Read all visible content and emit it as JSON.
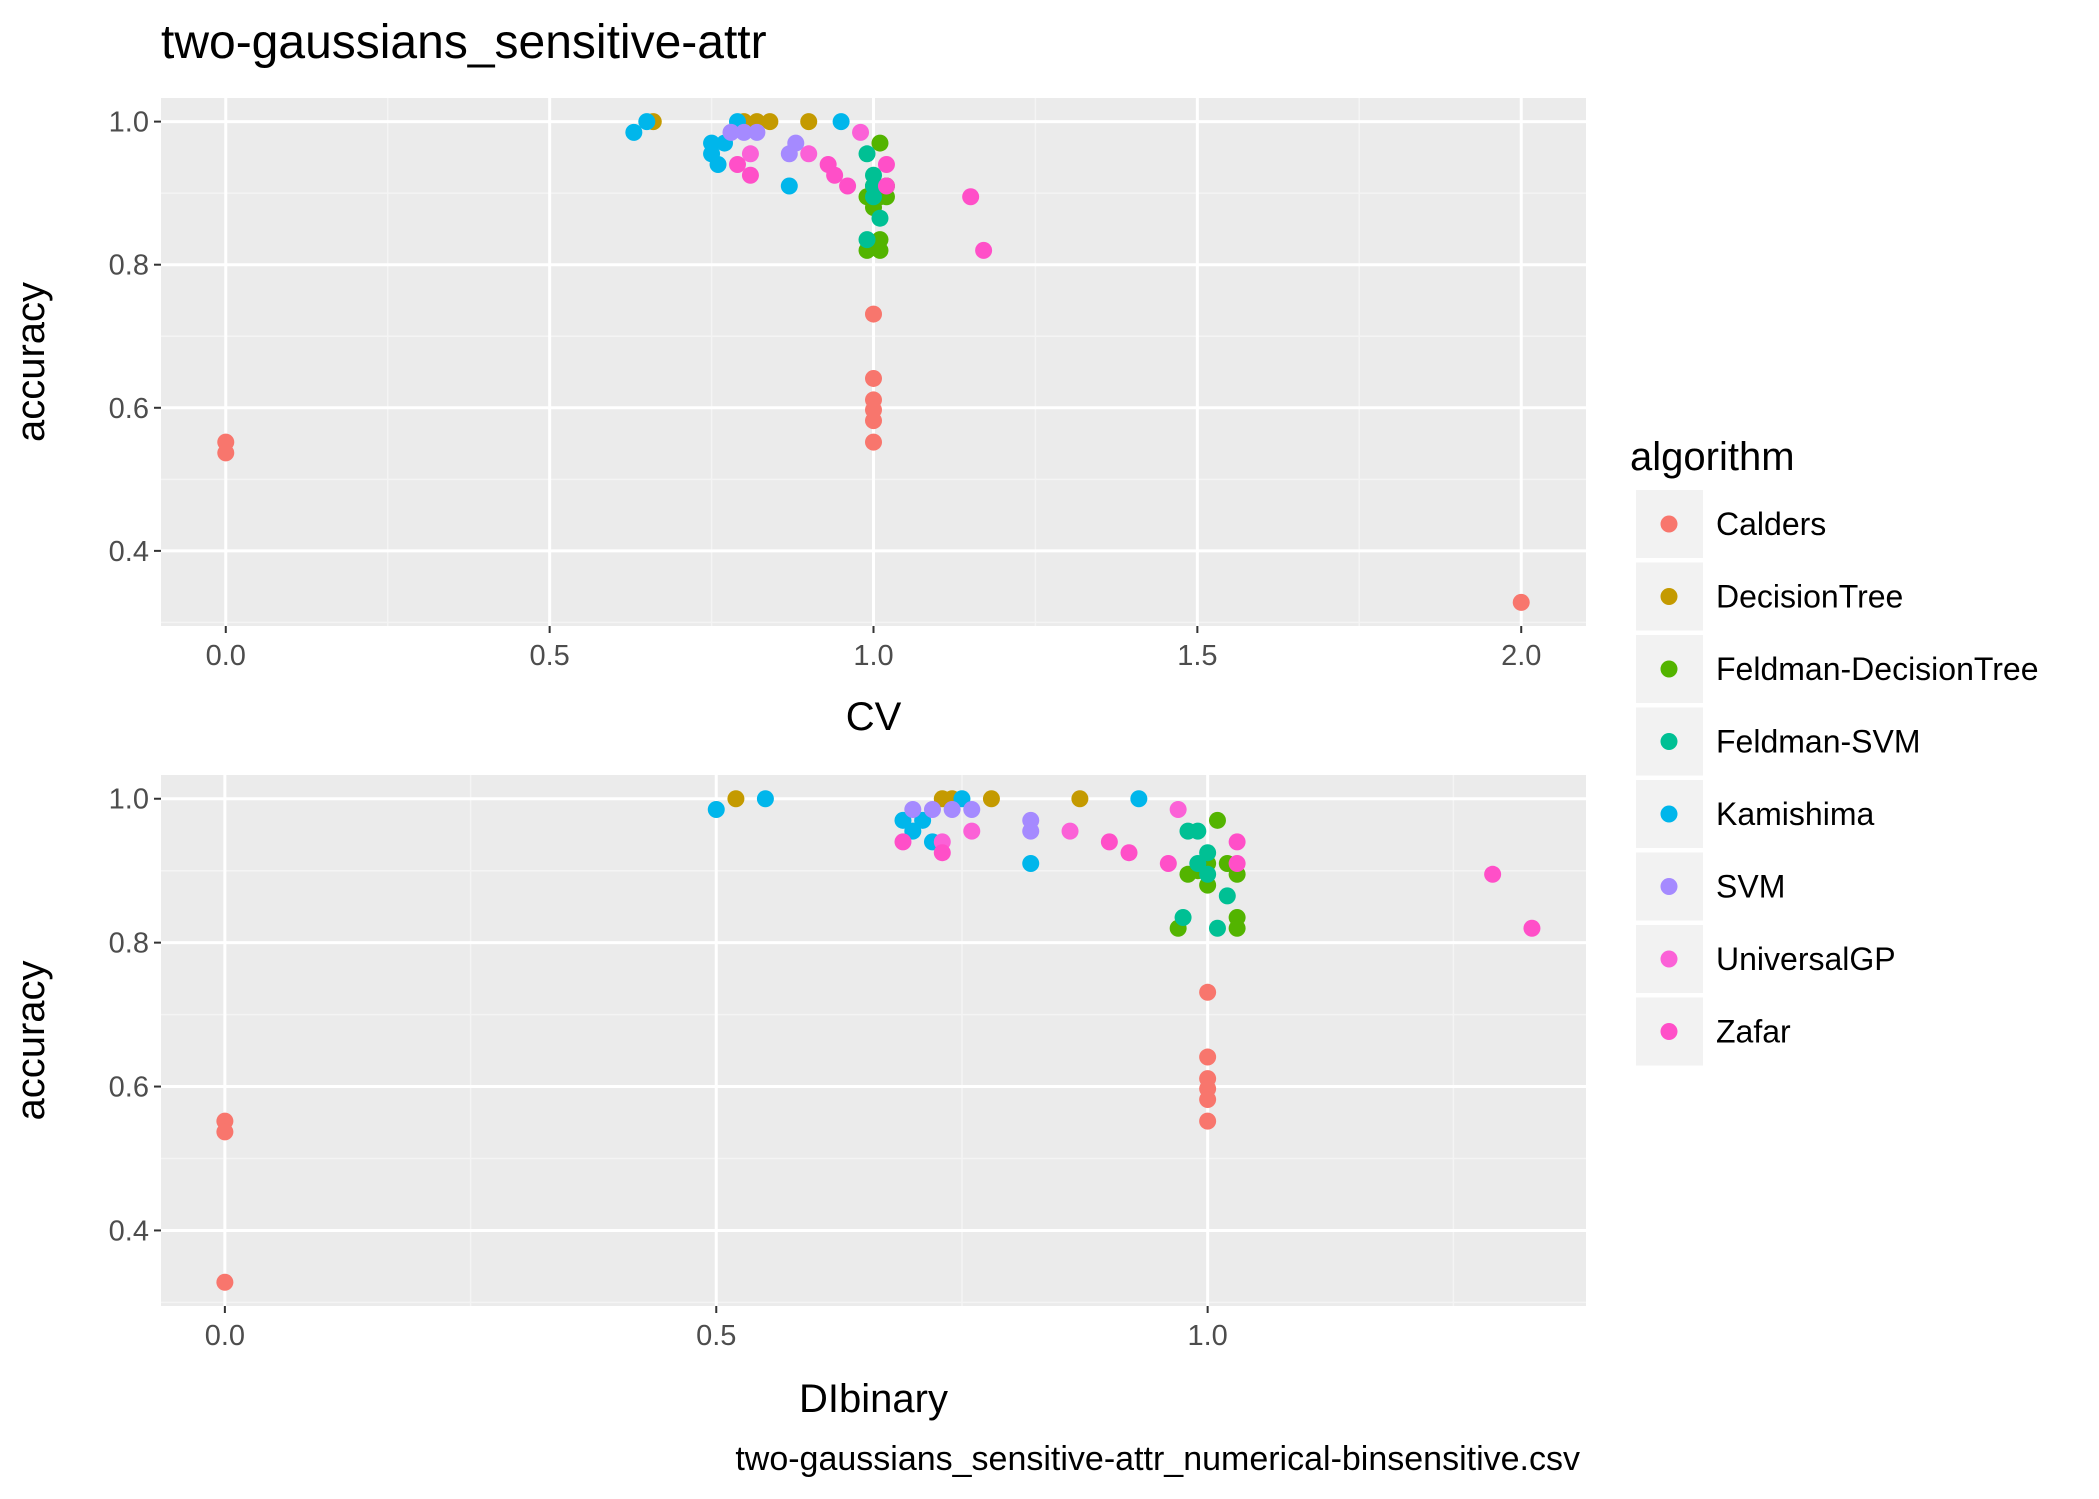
{
  "title": "two-gaussians_sensitive-attr",
  "caption": "two-gaussians_sensitive-attr_numerical-binsensitive.csv",
  "legend": {
    "title": "algorithm",
    "items": [
      {
        "name": "Calders",
        "color": "#F8766D"
      },
      {
        "name": "DecisionTree",
        "color": "#C49A00"
      },
      {
        "name": "Feldman-DecisionTree",
        "color": "#53B400"
      },
      {
        "name": "Feldman-SVM",
        "color": "#00C094"
      },
      {
        "name": "Kamishima",
        "color": "#00B6EB"
      },
      {
        "name": "SVM",
        "color": "#A58AFF"
      },
      {
        "name": "UniversalGP",
        "color": "#FB61D7"
      },
      {
        "name": "Zafar",
        "color": "#FF4FC8"
      }
    ]
  },
  "chart_data": [
    {
      "type": "scatter",
      "xlabel": "CV",
      "ylabel": "accuracy",
      "xlim": [
        -0.1,
        2.1
      ],
      "ylim": [
        0.295,
        1.033
      ],
      "x_ticks": [
        0.0,
        0.5,
        1.0,
        1.5,
        2.0
      ],
      "x_tick_labels": [
        "0.0",
        "0.5",
        "1.0",
        "1.5",
        "2.0"
      ],
      "y_ticks": [
        0.4,
        0.6,
        0.8,
        1.0
      ],
      "y_tick_labels": [
        "0.4",
        "0.6",
        "0.8",
        "1.0"
      ],
      "series": [
        {
          "name": "Calders",
          "points": [
            [
              0.0,
              0.552
            ],
            [
              0.0,
              0.537
            ],
            [
              1.0,
              0.731
            ],
            [
              1.0,
              0.641
            ],
            [
              1.0,
              0.611
            ],
            [
              1.0,
              0.597
            ],
            [
              1.0,
              0.582
            ],
            [
              1.0,
              0.552
            ],
            [
              2.0,
              0.328
            ]
          ]
        },
        {
          "name": "DecisionTree",
          "points": [
            [
              0.66,
              1.0
            ],
            [
              0.8,
              1.0
            ],
            [
              0.82,
              1.0
            ],
            [
              0.84,
              1.0
            ],
            [
              0.9,
              1.0
            ]
          ]
        },
        {
          "name": "Feldman-DecisionTree",
          "points": [
            [
              0.99,
              0.895
            ],
            [
              0.99,
              0.82
            ],
            [
              1.0,
              0.91
            ],
            [
              1.0,
              0.88
            ],
            [
              1.0,
              0.9
            ],
            [
              1.01,
              0.97
            ],
            [
              1.01,
              0.895
            ],
            [
              1.01,
              0.835
            ],
            [
              1.01,
              0.82
            ],
            [
              1.02,
              0.91
            ],
            [
              1.02,
              0.895
            ]
          ]
        },
        {
          "name": "Feldman-SVM",
          "points": [
            [
              0.99,
              0.955
            ],
            [
              0.99,
              0.835
            ],
            [
              1.0,
              0.925
            ],
            [
              1.0,
              0.91
            ],
            [
              1.0,
              0.895
            ],
            [
              1.01,
              0.865
            ]
          ]
        },
        {
          "name": "Kamishima",
          "points": [
            [
              0.63,
              0.985
            ],
            [
              0.65,
              1.0
            ],
            [
              0.75,
              0.97
            ],
            [
              0.75,
              0.955
            ],
            [
              0.76,
              0.94
            ],
            [
              0.77,
              0.97
            ],
            [
              0.79,
              1.0
            ],
            [
              0.87,
              0.91
            ],
            [
              0.95,
              1.0
            ]
          ]
        },
        {
          "name": "SVM",
          "points": [
            [
              0.78,
              0.985
            ],
            [
              0.8,
              0.985
            ],
            [
              0.82,
              0.985
            ],
            [
              0.87,
              0.955
            ],
            [
              0.88,
              0.97
            ]
          ]
        },
        {
          "name": "UniversalGP",
          "points": [
            [
              0.81,
              0.955
            ],
            [
              0.9,
              0.955
            ],
            [
              0.98,
              0.985
            ]
          ]
        },
        {
          "name": "Zafar",
          "points": [
            [
              0.79,
              0.94
            ],
            [
              0.81,
              0.925
            ],
            [
              0.93,
              0.94
            ],
            [
              0.94,
              0.925
            ],
            [
              0.96,
              0.91
            ],
            [
              1.02,
              0.94
            ],
            [
              1.02,
              0.91
            ],
            [
              1.15,
              0.895
            ],
            [
              1.17,
              0.82
            ]
          ]
        }
      ]
    },
    {
      "type": "scatter",
      "xlabel": "DIbinary",
      "ylabel": "accuracy",
      "xlim": [
        -0.065,
        1.385
      ],
      "ylim": [
        0.295,
        1.033
      ],
      "x_ticks": [
        0.0,
        0.5,
        1.0
      ],
      "x_tick_labels": [
        "0.0",
        "0.5",
        "1.0"
      ],
      "y_ticks": [
        0.4,
        0.6,
        0.8,
        1.0
      ],
      "y_tick_labels": [
        "0.4",
        "0.6",
        "0.8",
        "1.0"
      ],
      "series": [
        {
          "name": "Calders",
          "points": [
            [
              0.0,
              0.552
            ],
            [
              0.0,
              0.537
            ],
            [
              0.0,
              0.328
            ],
            [
              1.0,
              0.731
            ],
            [
              1.0,
              0.641
            ],
            [
              1.0,
              0.611
            ],
            [
              1.0,
              0.597
            ],
            [
              1.0,
              0.582
            ],
            [
              1.0,
              0.552
            ]
          ]
        },
        {
          "name": "DecisionTree",
          "points": [
            [
              0.52,
              1.0
            ],
            [
              0.73,
              1.0
            ],
            [
              0.74,
              1.0
            ],
            [
              0.78,
              1.0
            ],
            [
              0.87,
              1.0
            ]
          ]
        },
        {
          "name": "Feldman-DecisionTree",
          "points": [
            [
              0.97,
              0.82
            ],
            [
              0.98,
              0.895
            ],
            [
              0.99,
              0.9
            ],
            [
              1.0,
              0.88
            ],
            [
              1.0,
              0.91
            ],
            [
              1.01,
              0.97
            ],
            [
              1.02,
              0.91
            ],
            [
              1.03,
              0.895
            ],
            [
              1.03,
              0.835
            ],
            [
              1.03,
              0.82
            ]
          ]
        },
        {
          "name": "Feldman-SVM",
          "points": [
            [
              0.975,
              0.835
            ],
            [
              0.98,
              0.955
            ],
            [
              0.99,
              0.955
            ],
            [
              0.99,
              0.91
            ],
            [
              1.0,
              0.925
            ],
            [
              1.0,
              0.895
            ],
            [
              1.01,
              0.82
            ],
            [
              1.02,
              0.865
            ]
          ]
        },
        {
          "name": "Kamishima",
          "points": [
            [
              0.5,
              0.985
            ],
            [
              0.55,
              1.0
            ],
            [
              0.69,
              0.97
            ],
            [
              0.7,
              0.955
            ],
            [
              0.71,
              0.97
            ],
            [
              0.72,
              0.94
            ],
            [
              0.75,
              1.0
            ],
            [
              0.82,
              0.91
            ],
            [
              0.93,
              1.0
            ]
          ]
        },
        {
          "name": "SVM",
          "points": [
            [
              0.7,
              0.985
            ],
            [
              0.72,
              0.985
            ],
            [
              0.74,
              0.985
            ],
            [
              0.76,
              0.985
            ],
            [
              0.82,
              0.97
            ],
            [
              0.82,
              0.955
            ]
          ]
        },
        {
          "name": "UniversalGP",
          "points": [
            [
              0.73,
              0.94
            ],
            [
              0.76,
              0.955
            ],
            [
              0.86,
              0.955
            ],
            [
              0.97,
              0.985
            ]
          ]
        },
        {
          "name": "Zafar",
          "points": [
            [
              0.69,
              0.94
            ],
            [
              0.73,
              0.925
            ],
            [
              0.9,
              0.94
            ],
            [
              0.92,
              0.925
            ],
            [
              0.96,
              0.91
            ],
            [
              1.03,
              0.94
            ],
            [
              1.03,
              0.91
            ],
            [
              1.29,
              0.895
            ],
            [
              1.33,
              0.82
            ]
          ]
        }
      ]
    }
  ]
}
